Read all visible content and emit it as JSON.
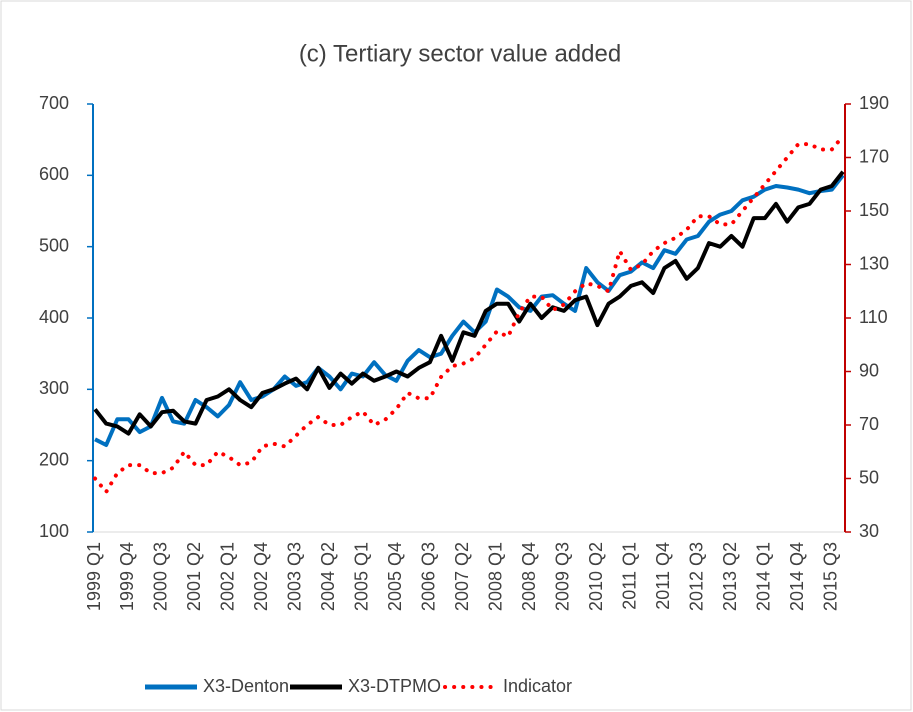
{
  "chart_data": {
    "type": "line",
    "title": "(c) Tertiary sector value added",
    "categories": [
      "1999 Q1",
      null,
      null,
      "1999 Q4",
      null,
      null,
      "2000 Q3",
      null,
      null,
      "2001 Q2",
      null,
      null,
      "2002 Q1",
      null,
      null,
      "2002 Q4",
      null,
      null,
      "2003 Q3",
      null,
      null,
      "2004 Q2",
      null,
      null,
      "2005 Q1",
      null,
      null,
      "2005 Q4",
      null,
      null,
      "2006 Q3",
      null,
      null,
      "2007 Q2",
      null,
      null,
      "2008 Q1",
      null,
      null,
      "2008 Q4",
      null,
      null,
      "2009 Q3",
      null,
      null,
      "2010 Q2",
      null,
      null,
      "2011 Q1",
      null,
      null,
      "2011 Q4",
      null,
      null,
      "2012 Q3",
      null,
      null,
      "2013 Q2",
      null,
      null,
      "2014 Q1",
      null,
      null,
      "2014 Q4",
      null,
      null,
      "2015 Q3",
      null
    ],
    "series": [
      {
        "name": "X3-Denton",
        "color": "#0070c0",
        "values": [
          230,
          222,
          258,
          258,
          240,
          248,
          288,
          255,
          252,
          285,
          275,
          262,
          278,
          310,
          285,
          290,
          300,
          318,
          305,
          310,
          330,
          318,
          300,
          322,
          318,
          338,
          320,
          312,
          340,
          355,
          345,
          350,
          375,
          395,
          380,
          395,
          440,
          430,
          415,
          410,
          430,
          432,
          420,
          410,
          470,
          450,
          438,
          460,
          465,
          478,
          470,
          495,
          490,
          510,
          515,
          535,
          545,
          550,
          565,
          570,
          580,
          585,
          583,
          580,
          575,
          578,
          580,
          600
        ]
      },
      {
        "name": "X3-DTPMO",
        "color": "#000000",
        "values": [
          272,
          252,
          248,
          238,
          265,
          248,
          268,
          270,
          255,
          252,
          285,
          290,
          300,
          285,
          275,
          295,
          300,
          308,
          315,
          300,
          330,
          302,
          322,
          308,
          322,
          312,
          318,
          325,
          318,
          330,
          338,
          375,
          340,
          380,
          375,
          410,
          420,
          420,
          395,
          420,
          400,
          415,
          410,
          425,
          430,
          390,
          420,
          430,
          445,
          450,
          435,
          470,
          480,
          455,
          470,
          505,
          500,
          515,
          500,
          540,
          540,
          560,
          535,
          555,
          560,
          580,
          585,
          605
        ]
      },
      {
        "name": "Indicator",
        "color": "#ff0000",
        "axis": "y2",
        "dashed": true,
        "values": [
          50,
          45,
          52,
          55,
          55,
          52,
          52,
          54,
          60,
          55,
          55,
          60,
          58,
          55,
          56,
          62,
          63,
          62,
          66,
          70,
          73,
          70,
          70,
          73,
          75,
          70,
          72,
          76,
          82,
          80,
          80,
          88,
          92,
          93,
          95,
          100,
          105,
          103,
          112,
          118,
          118,
          113,
          115,
          120,
          123,
          122,
          120,
          135,
          128,
          130,
          135,
          138,
          140,
          143,
          148,
          148,
          145,
          145,
          150,
          155,
          160,
          165,
          170,
          175,
          175,
          173,
          173,
          178
        ]
      }
    ],
    "ylim": [
      100,
      700
    ],
    "yticks": [
      100,
      200,
      300,
      400,
      500,
      600,
      700
    ],
    "y_axis_color": "#0070c0",
    "y2lim": [
      30,
      190
    ],
    "y2ticks": [
      30,
      50,
      70,
      90,
      110,
      130,
      150,
      170,
      190
    ],
    "y2_axis_color": "#c00000",
    "grid": false,
    "legend": "bottom"
  }
}
